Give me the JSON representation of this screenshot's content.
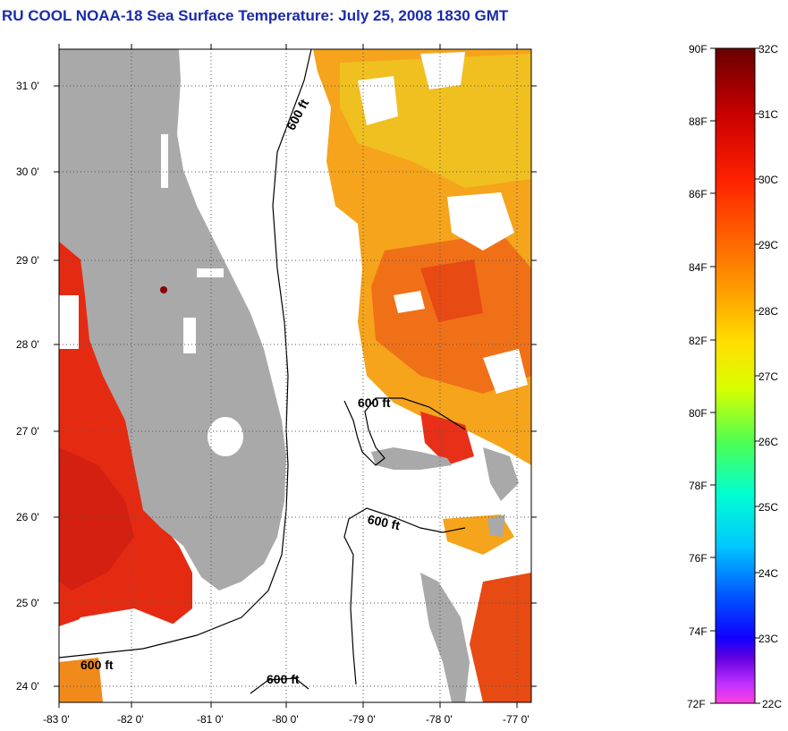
{
  "header": {
    "title": "RU COOL  NOAA-18  Sea Surface Temperature:  July 25, 2008 1830 GMT"
  },
  "map": {
    "lat_ticks": [
      "31 0'",
      "30 0'",
      "29 0'",
      "28 0'",
      "27 0'",
      "26 0'",
      "25 0'",
      "24 0'"
    ],
    "lon_ticks": [
      "-83 0'",
      "-82 0'",
      "-81 0'",
      "-80 0'",
      "-79 0'",
      "-78 0'",
      "-77 0'"
    ],
    "contour_label": "600 ft",
    "colors": {
      "land": "#a9a9a9",
      "cloud": "#ffffff",
      "warm_gulf": "#e52a12",
      "warm_atlantic": "#f09a1a"
    }
  },
  "colorbar": {
    "fahrenheit_labels": [
      "90F",
      "88F",
      "86F",
      "84F",
      "82F",
      "80F",
      "78F",
      "76F",
      "74F",
      "72F"
    ],
    "celsius_labels": [
      "32C",
      "31C",
      "30C",
      "29C",
      "28C",
      "27C",
      "26C",
      "25C",
      "24C",
      "23C",
      "22C"
    ],
    "gradient_top_to_bottom": [
      "#6a0000",
      "#c80000",
      "#ff2000",
      "#ff6a00",
      "#ffa500",
      "#ffe000",
      "#d8ff00",
      "#50ff50",
      "#00ffd0",
      "#00c8ff",
      "#0080ff",
      "#0020ff",
      "#3000d0",
      "#a020ff",
      "#ff40e0"
    ]
  }
}
